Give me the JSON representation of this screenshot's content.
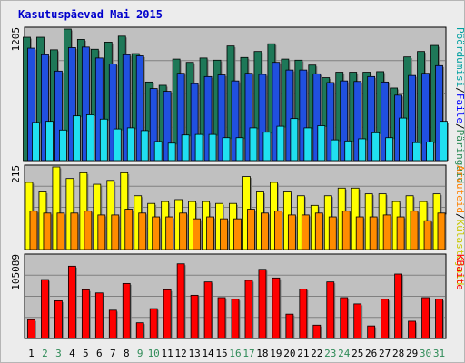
{
  "title": "Kasutuspäevad Mai 2015",
  "colors": {
    "background": "#ececec",
    "plot_background": "#c0c0c0",
    "weekday_label": "#000000",
    "weekend_label": "#2e8b57",
    "pages_legend": "#2e8b57",
    "files_legend": "#0000ff",
    "hits_legend": "#00a0a0",
    "visits_legend": "#c8c800",
    "sites_legend": "#ff8000",
    "kbytes_legend": "#ff0000"
  },
  "chart_data": [
    {
      "type": "bar",
      "name": "top",
      "categories": [
        "1",
        "2",
        "3",
        "4",
        "5",
        "6",
        "7",
        "8",
        "9",
        "10",
        "11",
        "12",
        "13",
        "14",
        "15",
        "16",
        "17",
        "18",
        "19",
        "20",
        "21",
        "22",
        "23",
        "24",
        "25",
        "26",
        "27",
        "28",
        "29",
        "30",
        "31"
      ],
      "weekend_days": [
        "2",
        "3",
        "9",
        "10",
        "16",
        "17",
        "23",
        "24",
        "30",
        "31"
      ],
      "axis_max_label": "1205",
      "ylim": [
        0,
        1205
      ],
      "legend": [
        "Päringuid",
        "Faile",
        "Pöördumisi"
      ],
      "series": [
        {
          "name": "Päringuid",
          "color": "#1e7858",
          "values": [
            1130,
            1130,
            1015,
            1205,
            1110,
            1020,
            1085,
            1140,
            980,
            720,
            690,
            930,
            900,
            940,
            920,
            1050,
            945,
            1000,
            1070,
            930,
            920,
            875,
            760,
            810,
            810,
            810,
            815,
            665,
            950,
            1000,
            1055
          ]
        },
        {
          "name": "Faile",
          "color": "#2050e0",
          "values": [
            1030,
            970,
            820,
            1035,
            1040,
            940,
            885,
            970,
            960,
            660,
            635,
            800,
            705,
            770,
            785,
            730,
            800,
            790,
            900,
            830,
            830,
            795,
            715,
            730,
            725,
            770,
            720,
            600,
            780,
            800,
            870
          ]
        },
        {
          "name": "Pöördumisi",
          "color": "#20e0f0",
          "values": [
            350,
            360,
            280,
            410,
            420,
            380,
            290,
            300,
            275,
            175,
            160,
            235,
            240,
            240,
            210,
            210,
            300,
            260,
            315,
            385,
            300,
            320,
            190,
            180,
            200,
            255,
            210,
            390,
            165,
            170,
            360
          ]
        }
      ]
    },
    {
      "type": "bar",
      "name": "middle",
      "categories": [
        "1",
        "2",
        "3",
        "4",
        "5",
        "6",
        "7",
        "8",
        "9",
        "10",
        "11",
        "12",
        "13",
        "14",
        "15",
        "16",
        "17",
        "18",
        "19",
        "20",
        "21",
        "22",
        "23",
        "24",
        "25",
        "26",
        "27",
        "28",
        "29",
        "30",
        "31"
      ],
      "axis_max_label": "215",
      "ylim": [
        0,
        215
      ],
      "legend": [
        "Külastajaid",
        "Arvuteid"
      ],
      "series": [
        {
          "name": "Külastajaid",
          "color": "#ffff00",
          "values": [
            175,
            150,
            215,
            185,
            200,
            170,
            180,
            200,
            140,
            120,
            125,
            130,
            125,
            125,
            120,
            120,
            190,
            150,
            175,
            150,
            140,
            115,
            140,
            160,
            160,
            145,
            145,
            125,
            140,
            125,
            145
          ]
        },
        {
          "name": "Arvuteid",
          "color": "#ff8c00",
          "values": [
            100,
            95,
            95,
            95,
            100,
            90,
            90,
            105,
            95,
            85,
            85,
            95,
            80,
            85,
            80,
            80,
            105,
            95,
            100,
            90,
            90,
            95,
            85,
            100,
            85,
            85,
            90,
            85,
            100,
            75,
            95
          ]
        }
      ]
    },
    {
      "type": "bar",
      "name": "bottom",
      "categories": [
        "1",
        "2",
        "3",
        "4",
        "5",
        "6",
        "7",
        "8",
        "9",
        "10",
        "11",
        "12",
        "13",
        "14",
        "15",
        "16",
        "17",
        "18",
        "19",
        "20",
        "21",
        "22",
        "23",
        "24",
        "25",
        "26",
        "27",
        "28",
        "29",
        "30",
        "31"
      ],
      "axis_max_label": "105089",
      "ylim": [
        0,
        105089
      ],
      "legend": [
        "KBaite"
      ],
      "series": [
        {
          "name": "KBaite",
          "color": "#ff0000",
          "values": [
            24000,
            75000,
            48000,
            92000,
            62000,
            58000,
            36000,
            70000,
            20000,
            38000,
            62000,
            95000,
            55000,
            72000,
            52000,
            50000,
            74000,
            88000,
            77000,
            31000,
            63000,
            17000,
            72000,
            52000,
            44000,
            16000,
            50000,
            82000,
            22000,
            52000,
            50000
          ]
        }
      ]
    }
  ]
}
